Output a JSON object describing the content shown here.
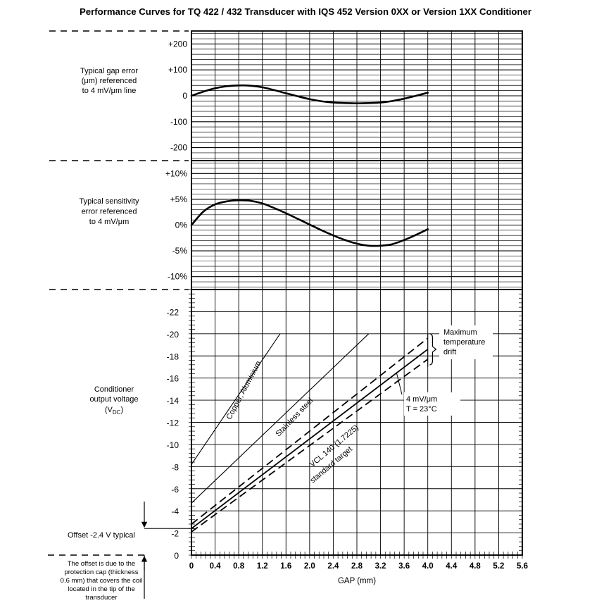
{
  "title": "Performance Curves for TQ 422 / 432 Transducer with IQS 452 Version 0XX or Version 1XX Conditioner",
  "chart_data": [
    {
      "type": "line",
      "name": "gap-error",
      "ylabel": [
        "Typical gap error",
        "(μm) referenced",
        "to 4 mV/μm line"
      ],
      "ylim": [
        -250,
        250
      ],
      "yticks": [
        200,
        100,
        0,
        -100,
        -200
      ],
      "ytick_labels": [
        "+200",
        "+100",
        "0",
        "-100",
        "-200"
      ],
      "series": [
        {
          "name": "gap error",
          "x": [
            0,
            0.2,
            0.4,
            0.6,
            0.8,
            1.0,
            1.2,
            1.4,
            1.6,
            1.8,
            2.0,
            2.2,
            2.4,
            2.6,
            2.8,
            3.0,
            3.2,
            3.4,
            3.6,
            3.8,
            4.0
          ],
          "y": [
            0,
            16,
            29,
            37,
            40,
            39,
            33,
            22,
            10,
            -2,
            -13,
            -21,
            -26,
            -28,
            -29,
            -28,
            -26,
            -20,
            -11,
            0,
            12
          ]
        }
      ]
    },
    {
      "type": "line",
      "name": "sensitivity-error",
      "ylabel": [
        "Typical sensitivity",
        "error referenced",
        "to 4 mV/μm"
      ],
      "ylim": [
        -12.5,
        12.5
      ],
      "yticks": [
        10,
        5,
        0,
        -5,
        -10
      ],
      "ytick_labels": [
        "+10%",
        "+5%",
        "0%",
        "-5%",
        "-10%"
      ],
      "series": [
        {
          "name": "sensitivity error",
          "x": [
            0,
            0.2,
            0.4,
            0.6,
            0.8,
            1.0,
            1.2,
            1.4,
            1.6,
            1.8,
            2.0,
            2.2,
            2.4,
            2.6,
            2.8,
            3.0,
            3.2,
            3.4,
            3.6,
            3.8,
            4.0
          ],
          "y": [
            0,
            2.6,
            4.0,
            4.6,
            4.8,
            4.7,
            4.2,
            3.3,
            2.3,
            1.2,
            0.1,
            -1.0,
            -2.0,
            -2.9,
            -3.6,
            -4.0,
            -4.0,
            -3.7,
            -2.9,
            -1.9,
            -0.8
          ]
        }
      ]
    },
    {
      "type": "line",
      "name": "conditioner-output",
      "ylabel": [
        "Conditioner",
        "output voltage",
        "(V",
        "DC",
        ")"
      ],
      "xlabel": "GAP (mm)",
      "xlim": [
        0,
        5.6
      ],
      "ylim": [
        0,
        -24
      ],
      "xticks": [
        0,
        0.4,
        0.8,
        1.2,
        1.6,
        2.0,
        2.4,
        2.8,
        3.2,
        3.6,
        4.0,
        4.4,
        4.8,
        5.2,
        5.6
      ],
      "xtick_labels": [
        "0",
        "0.4",
        "0.8",
        "1.2",
        "1.6",
        "2.0",
        "2.4",
        "2.8",
        "3.2",
        "3.6",
        "4.0",
        "4.4",
        "4.8",
        "5.2",
        "5.6"
      ],
      "yticks": [
        0,
        -2,
        -4,
        -6,
        -8,
        -10,
        -12,
        -14,
        -16,
        -18,
        -20,
        -22
      ],
      "ytick_labels": [
        "0",
        "-2",
        "-4",
        "-6",
        "-8",
        "-10",
        "-12",
        "-14",
        "-16",
        "-18",
        "-20",
        "-22"
      ],
      "series": [
        {
          "name": "Copper, Aluminium",
          "style": "solid",
          "x": [
            0,
            1.5
          ],
          "y": [
            -8.2,
            -20.0
          ]
        },
        {
          "name": "Stainless steel",
          "style": "solid",
          "x": [
            0,
            3.0
          ],
          "y": [
            -4.7,
            -20.0
          ]
        },
        {
          "name": "VCL 140 (1.7225) standard target",
          "style": "solid",
          "x": [
            0,
            4.0
          ],
          "y": [
            -2.4,
            -18.6
          ]
        },
        {
          "name": "drift upper",
          "style": "dashed",
          "x": [
            0,
            4.0
          ],
          "y": [
            -2.8,
            -19.6
          ]
        },
        {
          "name": "drift lower",
          "style": "dashed",
          "x": [
            0,
            4.0
          ],
          "y": [
            -2.1,
            -17.7
          ]
        }
      ],
      "annotations": {
        "copper": "Copper, Aluminium",
        "stainless": "Stainless steel",
        "vcl_1": "VCL 140 (1.7225)",
        "vcl_2": "standard target",
        "drift": [
          "Maximum",
          "temperature",
          "drift"
        ],
        "sens": [
          "4 mV/μm",
          "T = 23°C"
        ],
        "offset": "Offset -2.4 V typical",
        "offset_value": -2.4,
        "offset_note": [
          "The offset is due to the",
          "protection cap (thickness",
          "0.6 mm) that covers the coil",
          "located in the tip of the",
          "transducer"
        ]
      }
    }
  ]
}
